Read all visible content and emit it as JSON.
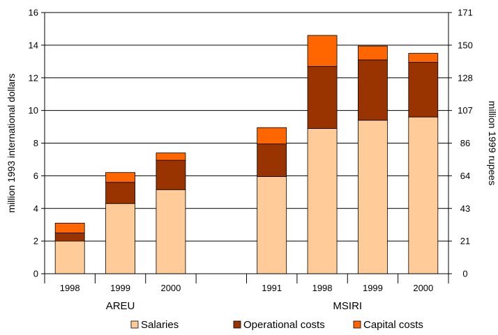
{
  "chart_data": {
    "type": "bar",
    "stacked": true,
    "ylabel": "million 1993 international dollars",
    "y2label": "million 1999 rupees",
    "ylim": [
      0,
      16
    ],
    "yticks": [
      0,
      2,
      4,
      6,
      8,
      10,
      12,
      14,
      16
    ],
    "y2_ticks": [
      {
        "label": "0",
        "value": 0
      },
      {
        "label": "21",
        "value": 2
      },
      {
        "label": "43",
        "value": 4
      },
      {
        "label": "64",
        "value": 6
      },
      {
        "label": "86",
        "value": 8
      },
      {
        "label": "107",
        "value": 10
      },
      {
        "label": "128",
        "value": 12
      },
      {
        "label": "150",
        "value": 14
      },
      {
        "label": "171",
        "value": 16
      }
    ],
    "grid": true,
    "legend_position": "bottom",
    "groups": [
      {
        "name": "AREU",
        "categories": [
          "1998",
          "1999",
          "2000"
        ]
      },
      {
        "name": "MSIRI",
        "categories": [
          "1991",
          "1998",
          "1999",
          "2000"
        ]
      }
    ],
    "categories": [
      "1998",
      "1999",
      "2000",
      "",
      "1991",
      "1998",
      "1999",
      "2000"
    ],
    "series": [
      {
        "name": "Salaries",
        "color": "#FFCC99",
        "values": [
          2.0,
          4.3,
          5.15,
          null,
          5.95,
          8.9,
          9.4,
          9.6
        ]
      },
      {
        "name": "Operational costs",
        "color": "#993300",
        "values": [
          0.5,
          1.3,
          1.8,
          null,
          2.0,
          3.8,
          3.7,
          3.35
        ]
      },
      {
        "name": "Capital costs",
        "color": "#FF6600",
        "values": [
          0.6,
          0.6,
          0.45,
          null,
          1.0,
          1.9,
          0.85,
          0.55
        ]
      }
    ]
  }
}
